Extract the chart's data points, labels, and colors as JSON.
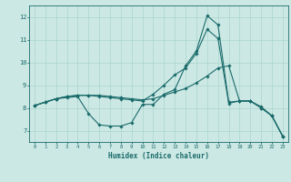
{
  "xlabel": "Humidex (Indice chaleur)",
  "bg_color": "#cce8e4",
  "grid_color": "#aad4ce",
  "line_color": "#1a6b6b",
  "xlim": [
    -0.5,
    23.5
  ],
  "ylim": [
    6.5,
    12.5
  ],
  "yticks": [
    7,
    8,
    9,
    10,
    11,
    12
  ],
  "xtick_labels": [
    "0",
    "1",
    "2",
    "3",
    "4",
    "5",
    "6",
    "7",
    "8",
    "9",
    "10",
    "11",
    "12",
    "13",
    "14",
    "15",
    "16",
    "17",
    "18",
    "19",
    "20",
    "21",
    "22",
    "23"
  ],
  "line1_x": [
    0,
    1,
    2,
    3,
    4,
    5,
    6,
    7,
    8,
    9,
    10,
    11,
    12,
    13,
    14,
    15,
    16,
    17,
    18,
    19,
    20,
    21,
    22,
    23
  ],
  "line1_y": [
    8.1,
    8.25,
    8.4,
    8.45,
    8.5,
    7.75,
    7.25,
    7.2,
    7.2,
    7.35,
    8.15,
    8.15,
    8.6,
    8.8,
    9.85,
    10.5,
    12.05,
    11.65,
    8.25,
    8.3,
    8.3,
    8.0,
    7.65,
    6.75
  ],
  "line2_x": [
    0,
    1,
    2,
    3,
    4,
    5,
    6,
    7,
    8,
    9,
    10,
    11,
    12,
    13,
    14,
    15,
    16,
    17,
    18,
    19,
    20,
    21,
    22,
    23
  ],
  "line2_y": [
    8.1,
    8.25,
    8.4,
    8.5,
    8.55,
    8.55,
    8.55,
    8.5,
    8.45,
    8.4,
    8.35,
    8.4,
    8.55,
    8.7,
    8.85,
    9.1,
    9.4,
    9.75,
    9.85,
    8.3,
    8.3,
    8.05,
    7.65,
    6.75
  ],
  "line3_x": [
    0,
    1,
    2,
    3,
    4,
    5,
    6,
    7,
    8,
    9,
    10,
    11,
    12,
    13,
    14,
    15,
    16,
    17,
    18,
    19,
    20,
    21,
    22,
    23
  ],
  "line3_y": [
    8.1,
    8.25,
    8.4,
    8.5,
    8.55,
    8.55,
    8.5,
    8.45,
    8.4,
    8.35,
    8.3,
    8.6,
    9.0,
    9.45,
    9.75,
    10.4,
    11.45,
    11.05,
    8.2,
    8.3,
    8.3,
    8.0,
    7.65,
    6.75
  ]
}
